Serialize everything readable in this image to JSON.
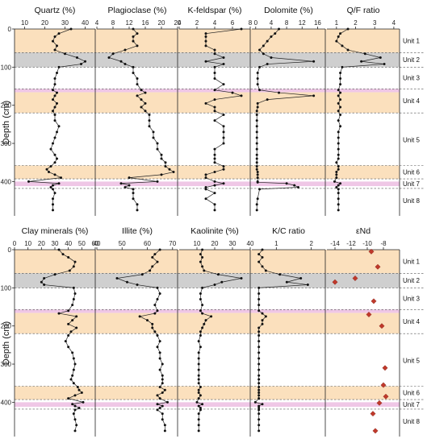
{
  "ylabel": "Depth (cm)",
  "depth_ticks": [
    0,
    100,
    200,
    300,
    400
  ],
  "depth_range": [
    0,
    490
  ],
  "bands": [
    {
      "from": 0,
      "to": 62,
      "color": "#fbe0bd"
    },
    {
      "from": 62,
      "to": 100,
      "color": "#cfcfcf"
    },
    {
      "from": 157,
      "to": 166,
      "color": "#efc7e6"
    },
    {
      "from": 166,
      "to": 220,
      "color": "#fbe0bd"
    },
    {
      "from": 358,
      "to": 393,
      "color": "#fbe0bd"
    },
    {
      "from": 400,
      "to": 412,
      "color": "#efc7e6"
    }
  ],
  "unit_boundaries": [
    62,
    100,
    157,
    220,
    358,
    393,
    418
  ],
  "units": [
    {
      "label": "Unit 1",
      "depth": 31
    },
    {
      "label": "Unit 2",
      "depth": 80
    },
    {
      "label": "Unit 3",
      "depth": 128
    },
    {
      "label": "Unit 4",
      "depth": 188
    },
    {
      "label": "Unit 5",
      "depth": 290
    },
    {
      "label": "Unit 6",
      "depth": 375
    },
    {
      "label": "Unit 7",
      "depth": 405
    },
    {
      "label": "Unit 8",
      "depth": 450
    }
  ],
  "chart_data": [
    {
      "type": "line",
      "title": "Quartz (%)",
      "xlabel": "Quartz (%)",
      "ylabel": "Depth (cm)",
      "row": 0,
      "col": 0,
      "xlim": [
        5,
        45
      ],
      "xticks": [
        10,
        20,
        30,
        40
      ],
      "series": [
        {
          "x": [
            33,
            27,
            25,
            24,
            26,
            25,
            30,
            36,
            40,
            38,
            27,
            26,
            25,
            25,
            24,
            26,
            25,
            24,
            26,
            25,
            24,
            25,
            25,
            27,
            26,
            25,
            24,
            23,
            25,
            26,
            25,
            23,
            21,
            22,
            25,
            28,
            12,
            27,
            24,
            23,
            24,
            25,
            24,
            24,
            24
          ],
          "y": [
            0,
            12,
            20,
            32,
            44,
            55,
            65,
            75,
            85,
            92,
            100,
            115,
            130,
            145,
            160,
            167,
            175,
            185,
            195,
            205,
            215,
            225,
            240,
            255,
            270,
            285,
            300,
            315,
            330,
            340,
            350,
            360,
            368,
            375,
            382,
            390,
            400,
            405,
            410,
            415,
            420,
            430,
            445,
            460,
            475
          ]
        }
      ]
    },
    {
      "type": "line",
      "title": "Plagioclase (%)",
      "xlabel": "Plagioclase (%)",
      "ylabel": "Depth (cm)",
      "row": 0,
      "col": 1,
      "xlim": [
        4,
        24
      ],
      "xticks": [
        4,
        8,
        12,
        16,
        20,
        24
      ],
      "series": [
        {
          "x": [
            13,
            14,
            13,
            13,
            14,
            11,
            8,
            7,
            10,
            11,
            13,
            13,
            14,
            14,
            15,
            16,
            14,
            15,
            16,
            15,
            16,
            17,
            17,
            17,
            18,
            18,
            19,
            19,
            20,
            20,
            21,
            21,
            22,
            23,
            20,
            12,
            19,
            10,
            12,
            11,
            13,
            13,
            13,
            14,
            14
          ],
          "y": [
            0,
            12,
            20,
            32,
            44,
            55,
            65,
            75,
            85,
            92,
            100,
            115,
            130,
            145,
            160,
            167,
            175,
            185,
            195,
            205,
            215,
            225,
            240,
            255,
            270,
            285,
            300,
            315,
            330,
            340,
            350,
            360,
            368,
            375,
            382,
            390,
            400,
            405,
            410,
            415,
            420,
            430,
            445,
            460,
            475
          ]
        }
      ]
    },
    {
      "type": "line",
      "title": "K-feldspar (%)",
      "xlabel": "K-feldspar (%)",
      "ylabel": "Depth (cm)",
      "row": 0,
      "col": 2,
      "xlim": [
        0,
        8
      ],
      "xticks": [
        0,
        2,
        4,
        6,
        8
      ],
      "series": [
        {
          "x": [
            7,
            3,
            3,
            3,
            3,
            4,
            4,
            5,
            3,
            5,
            4,
            4,
            4,
            5,
            4,
            6,
            7,
            4,
            3,
            4,
            4,
            5,
            4,
            5,
            5,
            5,
            5,
            4,
            4,
            4,
            4,
            5,
            5,
            4,
            3,
            3,
            4,
            5,
            4,
            3,
            3,
            4,
            3,
            4,
            4
          ],
          "y": [
            0,
            12,
            20,
            32,
            44,
            55,
            65,
            75,
            85,
            92,
            100,
            115,
            130,
            145,
            160,
            167,
            175,
            185,
            195,
            205,
            215,
            225,
            240,
            255,
            270,
            285,
            300,
            315,
            330,
            340,
            350,
            360,
            368,
            375,
            382,
            390,
            400,
            405,
            410,
            415,
            420,
            430,
            445,
            460,
            475
          ]
        }
      ]
    },
    {
      "type": "line",
      "title": "Dolomite (%)",
      "xlabel": "Dolomite (%)",
      "ylabel": "Depth (cm)",
      "row": 0,
      "col": 3,
      "xlim": [
        -1,
        18
      ],
      "xticks": [
        0,
        4,
        8,
        12,
        16
      ],
      "series": [
        {
          "x": [
            6,
            5,
            4,
            3,
            2,
            1,
            2,
            4,
            15,
            3,
            1,
            0.5,
            0.5,
            0.5,
            1,
            6,
            15,
            3,
            0.5,
            0.5,
            0.3,
            0.3,
            0.3,
            0.3,
            0.3,
            0.3,
            0.3,
            0.3,
            0.3,
            0.3,
            0.3,
            0.3,
            0.3,
            0.5,
            0.5,
            0.5,
            0.5,
            0.5,
            8,
            10,
            11,
            1,
            0.5,
            0.3,
            0.3
          ],
          "y": [
            0,
            12,
            20,
            32,
            44,
            55,
            65,
            75,
            85,
            92,
            100,
            115,
            130,
            145,
            160,
            167,
            175,
            185,
            195,
            205,
            215,
            225,
            240,
            255,
            270,
            285,
            300,
            315,
            330,
            340,
            350,
            360,
            368,
            375,
            382,
            390,
            400,
            402,
            405,
            410,
            415,
            420,
            445,
            460,
            475
          ]
        }
      ]
    },
    {
      "type": "line",
      "title": "Q/F ratio",
      "xlabel": "Q/F ratio",
      "ylabel": "Depth (cm)",
      "row": 0,
      "col": 4,
      "xlim": [
        0.5,
        4.3
      ],
      "xticks": [
        1.0,
        2.0,
        3.0,
        4.0
      ],
      "series": [
        {
          "x": [
            1.6,
            1.2,
            1.1,
            1.0,
            1.3,
            1.6,
            2.5,
            3.3,
            2.3,
            3.5,
            1.3,
            1.2,
            1.2,
            1.2,
            1.1,
            1.2,
            1.1,
            1.2,
            1.1,
            1.2,
            1.1,
            1.2,
            1.1,
            1.2,
            1.1,
            1.1,
            1.1,
            1.1,
            1.1,
            1.1,
            1.0,
            1.1,
            1.1,
            1.0,
            1.0,
            1.0,
            0.9,
            1.2,
            1.1,
            1.0,
            1.1,
            1.1,
            1.1,
            1.1,
            1.1
          ],
          "y": [
            0,
            12,
            20,
            32,
            44,
            55,
            65,
            75,
            85,
            92,
            100,
            115,
            130,
            145,
            160,
            167,
            175,
            185,
            195,
            205,
            215,
            225,
            240,
            255,
            270,
            285,
            300,
            315,
            330,
            340,
            350,
            360,
            368,
            375,
            382,
            390,
            400,
            405,
            410,
            415,
            420,
            430,
            445,
            460,
            475
          ]
        }
      ]
    },
    {
      "type": "line",
      "title": "Clay minerals (%)",
      "xlabel": "Clay minerals (%)",
      "ylabel": "Depth (cm)",
      "row": 1,
      "col": 0,
      "xlim": [
        0,
        60
      ],
      "xticks": [
        0,
        10,
        20,
        30,
        40,
        50,
        60
      ],
      "series": [
        {
          "x": [
            33,
            36,
            40,
            45,
            44,
            41,
            30,
            22,
            20,
            22,
            44,
            45,
            44,
            43,
            40,
            33,
            46,
            43,
            40,
            46,
            42,
            40,
            38,
            40,
            43,
            44,
            45,
            44,
            43,
            42,
            44,
            47,
            48,
            50,
            45,
            40,
            51,
            43,
            45,
            48,
            45,
            44,
            45,
            46,
            45
          ],
          "y": [
            0,
            12,
            20,
            32,
            44,
            55,
            65,
            75,
            85,
            92,
            100,
            115,
            130,
            145,
            160,
            167,
            175,
            185,
            195,
            205,
            215,
            225,
            240,
            255,
            270,
            285,
            300,
            315,
            330,
            340,
            350,
            360,
            368,
            375,
            382,
            390,
            400,
            405,
            410,
            415,
            420,
            430,
            445,
            460,
            475
          ]
        }
      ]
    },
    {
      "type": "line",
      "title": "Illite (%)",
      "xlabel": "Illite (%)",
      "ylabel": "Depth (cm)",
      "row": 1,
      "col": 1,
      "xlim": [
        40,
        72
      ],
      "xticks": [
        40,
        50,
        60,
        70
      ],
      "series": [
        {
          "x": [
            65,
            63,
            62,
            64,
            62,
            61,
            58,
            48,
            52,
            56,
            64,
            65,
            64,
            63,
            64,
            63,
            57,
            60,
            62,
            62,
            63,
            64,
            65,
            64,
            65,
            65,
            66,
            65,
            66,
            66,
            66,
            65,
            67,
            66,
            64,
            65,
            68,
            64,
            66,
            65,
            64,
            66,
            66,
            67,
            67
          ],
          "y": [
            0,
            12,
            20,
            32,
            44,
            55,
            65,
            75,
            85,
            92,
            100,
            115,
            130,
            145,
            160,
            167,
            175,
            185,
            195,
            205,
            215,
            225,
            240,
            255,
            270,
            285,
            300,
            315,
            330,
            340,
            350,
            360,
            368,
            375,
            382,
            390,
            400,
            405,
            410,
            415,
            420,
            430,
            445,
            460,
            475
          ]
        }
      ]
    },
    {
      "type": "line",
      "title": "Kaolinite (%)",
      "xlabel": "Kaolinite (%)",
      "ylabel": "Depth (cm)",
      "row": 1,
      "col": 2,
      "xlim": [
        0,
        40
      ],
      "xticks": [
        10,
        20,
        30,
        40
      ],
      "series": [
        {
          "x": [
            13,
            12,
            13,
            12,
            13,
            14,
            22,
            35,
            24,
            20,
            13,
            12,
            12,
            13,
            12,
            13,
            18,
            15,
            14,
            13,
            12,
            12,
            11,
            12,
            11,
            11,
            11,
            11,
            11,
            11,
            11,
            12,
            11,
            11,
            12,
            11,
            10,
            13,
            11,
            12,
            12,
            11,
            11,
            11,
            11
          ],
          "y": [
            0,
            12,
            20,
            32,
            44,
            55,
            65,
            75,
            85,
            92,
            100,
            115,
            130,
            145,
            160,
            167,
            175,
            185,
            195,
            205,
            215,
            225,
            240,
            255,
            270,
            285,
            300,
            315,
            330,
            340,
            350,
            360,
            368,
            375,
            382,
            390,
            400,
            405,
            410,
            415,
            420,
            430,
            445,
            460,
            475
          ]
        }
      ]
    },
    {
      "type": "line",
      "title": "K/C ratio",
      "xlabel": "K/C ratio",
      "ylabel": "Depth (cm)",
      "row": 1,
      "col": 3,
      "xlim": [
        0.3,
        2.4
      ],
      "xticks": [
        1,
        2.0
      ],
      "series": [
        {
          "x": [
            0.6,
            0.5,
            0.6,
            0.5,
            0.6,
            0.7,
            1.1,
            1.7,
            1.3,
            1.9,
            0.5,
            0.5,
            0.5,
            0.5,
            0.5,
            0.6,
            0.7,
            0.6,
            0.6,
            0.5,
            0.5,
            0.5,
            0.5,
            0.5,
            0.5,
            0.5,
            0.5,
            0.5,
            0.5,
            0.5,
            0.5,
            0.5,
            0.5,
            0.5,
            0.5,
            0.5,
            0.4,
            0.6,
            0.5,
            0.5,
            0.5,
            0.5,
            0.5,
            0.5,
            0.5
          ],
          "y": [
            0,
            12,
            20,
            32,
            44,
            55,
            65,
            75,
            85,
            92,
            100,
            115,
            130,
            145,
            160,
            167,
            175,
            185,
            195,
            205,
            215,
            225,
            240,
            255,
            270,
            285,
            300,
            315,
            330,
            340,
            350,
            360,
            368,
            375,
            382,
            390,
            400,
            405,
            410,
            415,
            420,
            430,
            445,
            460,
            475
          ]
        }
      ]
    },
    {
      "type": "scatter",
      "title": "εNd",
      "xlabel": "εNd",
      "ylabel": "Depth (cm)",
      "row": 1,
      "col": 4,
      "xlim": [
        -15,
        -6
      ],
      "xticks": [
        -14,
        -12,
        -10,
        -8
      ],
      "series": [
        {
          "x": [
            -9.5,
            -8.7,
            -14.0,
            -11.5,
            -9.2,
            -9.8,
            -8.2,
            -7.8,
            -8.0,
            -7.7,
            -8.5,
            -9.3,
            -9.0
          ],
          "y": [
            5,
            45,
            85,
            75,
            135,
            170,
            200,
            310,
            355,
            385,
            402,
            430,
            475
          ]
        }
      ]
    }
  ]
}
